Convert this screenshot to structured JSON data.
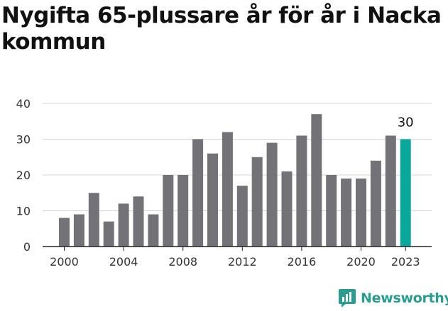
{
  "chart_data": {
    "type": "bar",
    "title": "Nygifta 65-plussare år för år i Nacka kommun",
    "xlabel": "",
    "ylabel": "",
    "ylim": [
      0,
      40
    ],
    "yticks": [
      0,
      10,
      20,
      30,
      40
    ],
    "grid": true,
    "categories": [
      "2000",
      "2001",
      "2002",
      "2003",
      "2004",
      "2005",
      "2006",
      "2007",
      "2008",
      "2009",
      "2010",
      "2011",
      "2012",
      "2013",
      "2014",
      "2015",
      "2016",
      "2017",
      "2018",
      "2019",
      "2020",
      "2021",
      "2022",
      "2023"
    ],
    "x_tick_labels": [
      "2000",
      "2004",
      "2008",
      "2012",
      "2016",
      "2020",
      "2023"
    ],
    "values": [
      8,
      9,
      15,
      7,
      12,
      14,
      9,
      20,
      20,
      30,
      26,
      32,
      17,
      25,
      29,
      21,
      31,
      37,
      20,
      19,
      19,
      24,
      31,
      30
    ],
    "highlight_category": "2023",
    "highlight_label": "30",
    "bar_color": "#737277",
    "highlight_color": "#0aa89a"
  },
  "brand": {
    "name": "Newsworthy",
    "icon": "newsworthy-logo-icon",
    "color": "#2a9d8f"
  }
}
